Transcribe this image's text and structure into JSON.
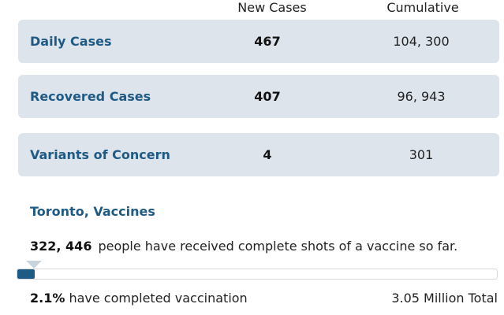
{
  "columns": {
    "new_cases": "New Cases",
    "cumulative": "Cumulative"
  },
  "rows": [
    {
      "label": "Daily Cases",
      "new": "467",
      "cumulative": "104, 300"
    },
    {
      "label": "Recovered Cases",
      "new": "407",
      "cumulative": "96, 943"
    },
    {
      "label": "Variants of Concern",
      "new": "4",
      "cumulative": "301"
    }
  ],
  "vaccines": {
    "title": "Toronto, Vaccines",
    "count": "322, 446",
    "description": "people have received complete shots of a vaccine so far.",
    "percent": "2.1%",
    "percent_suffix": " have completed vaccination",
    "total": "3.05 Million Total",
    "progress_fraction": 0.021,
    "progress_color": "#1f5a85"
  },
  "colors": {
    "label": "#1f5a85",
    "card_bg": "#dde4ec"
  }
}
